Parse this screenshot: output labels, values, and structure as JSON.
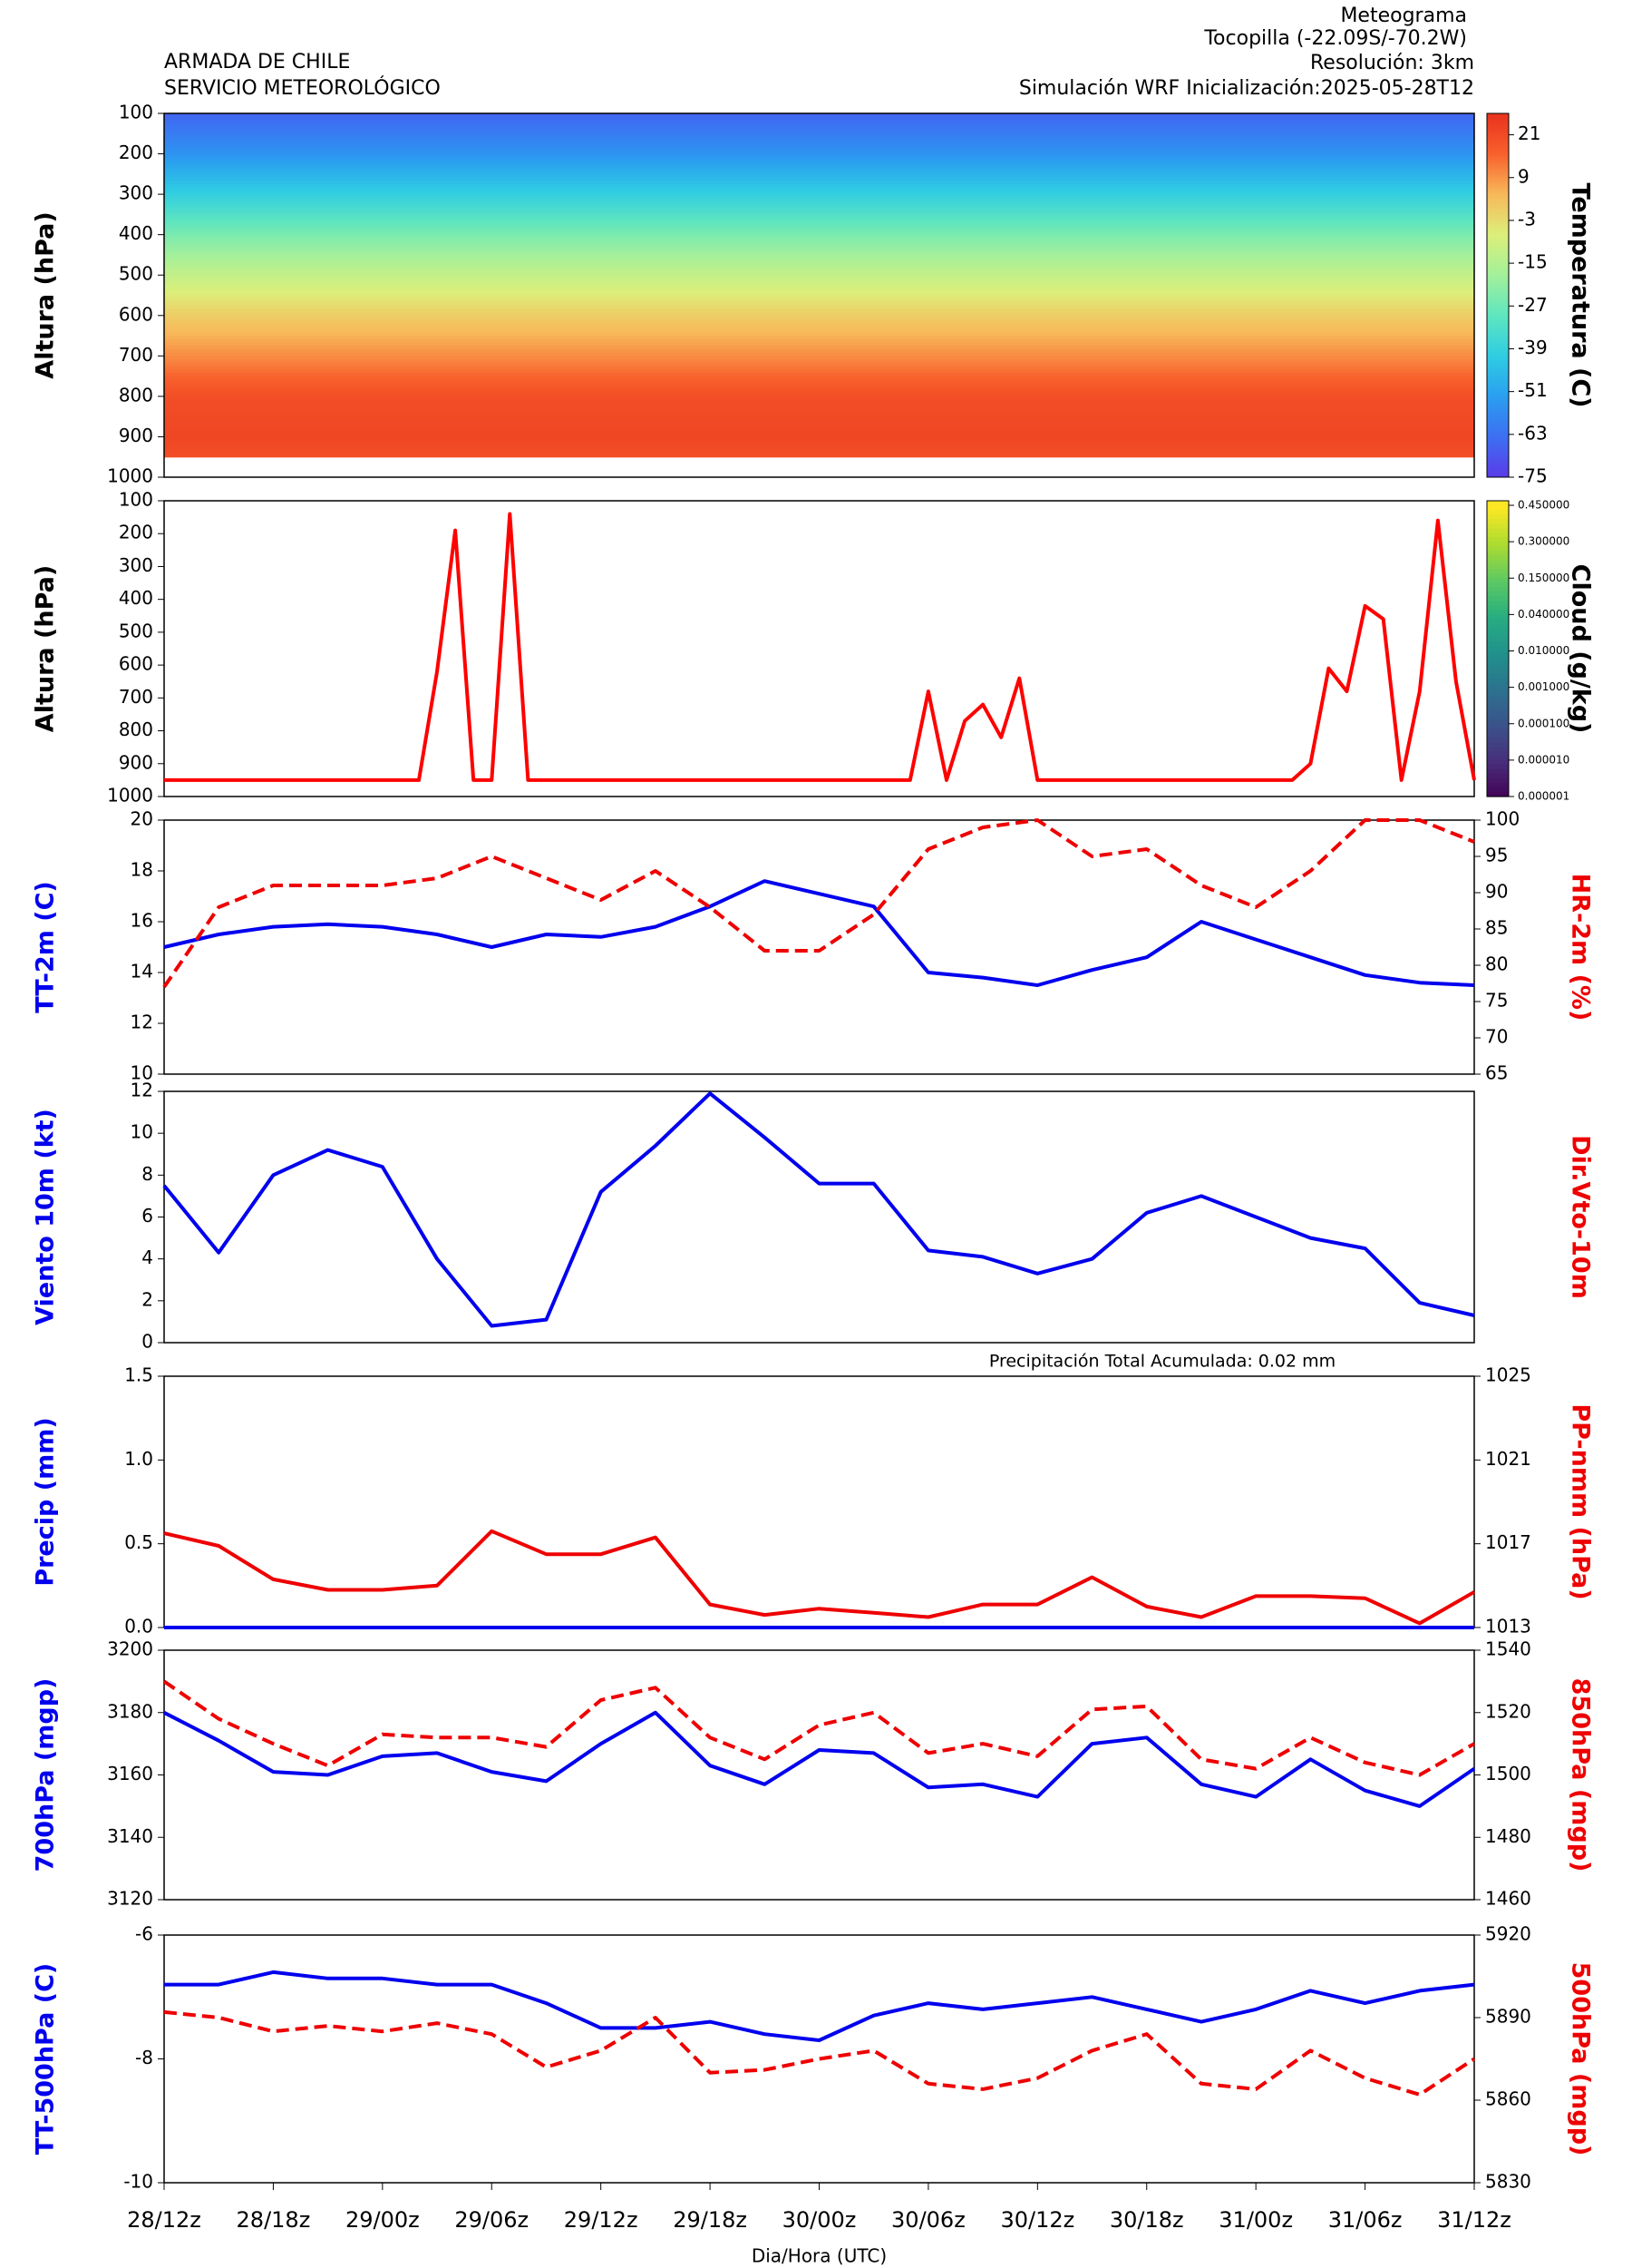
{
  "header": {
    "left": [
      "ARMADA DE CHILE",
      "SERVICIO METEOROLÓGICO"
    ],
    "right": [
      "Meteograma",
      "Tocopilla  (-22.09S/-70.2W)",
      "Resolución: 3km",
      "Simulación WRF   Inicialización:2025-05-28T12"
    ]
  },
  "chart_data": [
    {
      "type": "contour",
      "ylabel": "Altura (hPa)",
      "ylim": [
        1000,
        100
      ],
      "yticks": [
        100,
        200,
        300,
        400,
        500,
        600,
        700,
        800,
        900,
        1000
      ],
      "xlim": [
        0,
        72
      ],
      "levels": [
        100,
        200,
        300,
        400,
        500,
        600,
        700,
        800,
        900,
        950
      ],
      "temperature": [
        -66,
        -55,
        -40,
        -25,
        -12,
        0,
        10,
        20,
        22,
        20
      ],
      "colorbar": {
        "label": "Temperatura (C)",
        "lim": [
          -75,
          27
        ],
        "ticks": [
          21,
          9,
          -3,
          -15,
          -27,
          -39,
          -51,
          -63,
          -75
        ],
        "colors": [
          "#5a3ce8",
          "#3d6ff2",
          "#2a9ff0",
          "#2fcde2",
          "#5fe6bf",
          "#a3f09a",
          "#dcef7a",
          "#f8b85a",
          "#f8602c",
          "#e8321e"
        ]
      }
    },
    {
      "type": "line",
      "ylabel": "Altura (hPa)",
      "ylim": [
        1000,
        100
      ],
      "yticks": [
        100,
        200,
        300,
        400,
        500,
        600,
        700,
        800,
        900,
        1000
      ],
      "xlim": [
        0,
        72
      ],
      "x": [
        0,
        14,
        15,
        16,
        17,
        18,
        19,
        20,
        41,
        42,
        43,
        44,
        45,
        46,
        47,
        48,
        62,
        63,
        64,
        65,
        66,
        67,
        68,
        69,
        70,
        71,
        72
      ],
      "series": [
        {
          "color": "#ff0000",
          "values": [
            950,
            950,
            620,
            190,
            950,
            950,
            140,
            950,
            950,
            680,
            950,
            770,
            720,
            820,
            640,
            950,
            950,
            900,
            610,
            680,
            420,
            460,
            950,
            680,
            160,
            650,
            950
          ]
        }
      ],
      "colorbar": {
        "label": "Cloud (g/kg)",
        "ticks": [
          {
            "value": 0.45,
            "label": "0.450000"
          },
          {
            "value": 0.3,
            "label": "0.300000"
          },
          {
            "value": 0.15,
            "label": "0.150000"
          },
          {
            "value": 0.04,
            "label": "0.040000"
          },
          {
            "value": 0.01,
            "label": "0.010000"
          },
          {
            "value": 0.001,
            "label": "0.001000"
          },
          {
            "value": 0.0001,
            "label": "0.000100"
          },
          {
            "value": 1e-05,
            "label": "0.000010"
          },
          {
            "value": 1e-06,
            "label": "0.000001"
          }
        ],
        "colors": [
          "#fde725",
          "#addc30",
          "#5ec962",
          "#28ae80",
          "#21918c",
          "#2c728e",
          "#3b528b",
          "#472d7b",
          "#440154"
        ]
      }
    },
    {
      "type": "line",
      "ylabel": "TT-2m (C)",
      "y2label": "HR-2m (%)",
      "ylim": [
        10,
        20
      ],
      "yticks": [
        10,
        12,
        14,
        16,
        18,
        20
      ],
      "y2lim": [
        65,
        100
      ],
      "y2ticks": [
        65,
        70,
        75,
        80,
        85,
        90,
        95,
        100
      ],
      "xlim": [
        0,
        72
      ],
      "x": [
        0,
        3,
        6,
        9,
        12,
        15,
        18,
        21,
        24,
        27,
        30,
        33,
        36,
        39,
        42,
        45,
        48,
        51,
        54,
        57,
        60,
        63,
        66,
        69,
        72
      ],
      "series": [
        {
          "color": "#0000ee",
          "values": [
            15.0,
            15.5,
            15.8,
            15.9,
            15.8,
            15.5,
            15.0,
            15.5,
            15.4,
            15.8,
            16.6,
            17.6,
            17.1,
            16.6,
            14.0,
            13.8,
            13.5,
            14.1,
            14.6,
            16.0,
            15.3,
            14.6,
            13.9,
            13.6,
            13.5
          ]
        },
        {
          "color": "#ee0000",
          "dash": true,
          "axis": "y2",
          "values": [
            77,
            88,
            91,
            91,
            91,
            92,
            95,
            92,
            89,
            93,
            88,
            82,
            82,
            87,
            96,
            99,
            100,
            95,
            96,
            91,
            88,
            93,
            100,
            100,
            97
          ]
        }
      ]
    },
    {
      "type": "line",
      "ylabel": "Viento 10m (kt)",
      "y2label": "Dir.Vto-10m",
      "ylim": [
        0,
        12
      ],
      "yticks": [
        0,
        2,
        4,
        6,
        8,
        10,
        12
      ],
      "xlim": [
        0,
        72
      ],
      "x": [
        0,
        3,
        6,
        9,
        12,
        15,
        18,
        21,
        24,
        27,
        30,
        33,
        36,
        39,
        42,
        45,
        48,
        51,
        54,
        57,
        60,
        63,
        66,
        69,
        72
      ],
      "series": [
        {
          "color": "#0000ee",
          "values": [
            7.5,
            4.3,
            8.0,
            9.2,
            8.4,
            4.0,
            0.8,
            1.1,
            7.2,
            9.4,
            11.9,
            9.8,
            7.6,
            7.6,
            4.4,
            4.1,
            3.3,
            4.0,
            6.2,
            7.0,
            6.0,
            5.0,
            4.5,
            1.9,
            1.3
          ]
        }
      ]
    },
    {
      "type": "line",
      "ylabel": "Precip (mm)",
      "y2label": "PP-nmm (hPa)",
      "annotation": "Precipitación Total Acumulada: 0.02 mm",
      "ylim": [
        0,
        1.5
      ],
      "yticks": [
        {
          "value": 0,
          "label": "0.0"
        },
        0.5,
        {
          "value": 1,
          "label": "1.0"
        },
        1.5
      ],
      "y2lim": [
        1013,
        1025
      ],
      "y2ticks": [
        1013,
        1017,
        1021,
        1025
      ],
      "xlim": [
        0,
        72
      ],
      "x": [
        0,
        3,
        6,
        9,
        12,
        15,
        18,
        21,
        24,
        27,
        30,
        33,
        36,
        39,
        42,
        45,
        48,
        51,
        54,
        57,
        60,
        63,
        66,
        69,
        72
      ],
      "series": [
        {
          "color": "#0000ee",
          "values": [
            0,
            0,
            0,
            0,
            0,
            0,
            0,
            0,
            0,
            0,
            0,
            0,
            0,
            0,
            0,
            0,
            0,
            0,
            0,
            0,
            0,
            0,
            0,
            0,
            0
          ]
        },
        {
          "color": "#ee0000",
          "axis": "y2",
          "values": [
            1017.5,
            1016.9,
            1015.3,
            1014.8,
            1014.8,
            1015.0,
            1017.6,
            1016.5,
            1016.5,
            1017.3,
            1014.1,
            1013.6,
            1013.9,
            1013.7,
            1013.5,
            1014.1,
            1014.1,
            1015.4,
            1014.0,
            1013.5,
            1014.5,
            1014.5,
            1014.4,
            1013.2,
            1014.7
          ]
        }
      ]
    },
    {
      "type": "line",
      "ylabel": "700hPa (mgp)",
      "y2label": "850hPa (mgp)",
      "ylim": [
        3120,
        3200
      ],
      "yticks": [
        3120,
        3140,
        3160,
        3180,
        3200
      ],
      "y2lim": [
        1460,
        1540
      ],
      "y2ticks": [
        1460,
        1480,
        1500,
        1520,
        1540
      ],
      "xlim": [
        0,
        72
      ],
      "x": [
        0,
        3,
        6,
        9,
        12,
        15,
        18,
        21,
        24,
        27,
        30,
        33,
        36,
        39,
        42,
        45,
        48,
        51,
        54,
        57,
        60,
        63,
        66,
        69,
        72
      ],
      "series": [
        {
          "color": "#0000ee",
          "values": [
            3180,
            3171,
            3161,
            3160,
            3166,
            3167,
            3161,
            3158,
            3170,
            3180,
            3163,
            3157,
            3168,
            3167,
            3156,
            3157,
            3153,
            3170,
            3172,
            3157,
            3153,
            3165,
            3155,
            3150,
            3162
          ]
        },
        {
          "color": "#ee0000",
          "dash": true,
          "axis": "y2",
          "values": [
            1530,
            1518,
            1510,
            1503,
            1513,
            1512,
            1512,
            1509,
            1524,
            1528,
            1512,
            1505,
            1516,
            1520,
            1507,
            1510,
            1506,
            1521,
            1522,
            1505,
            1502,
            1512,
            1504,
            1500,
            1510
          ]
        }
      ]
    },
    {
      "type": "line",
      "ylabel": "TT-500hPa (C)",
      "y2label": "500hPa (mgp)",
      "ylim": [
        -10,
        -6
      ],
      "yticks": [
        -10,
        -8,
        -6
      ],
      "y2lim": [
        5830,
        5920
      ],
      "y2ticks": [
        5830,
        5860,
        5890,
        5920
      ],
      "xlim": [
        0,
        72
      ],
      "x": [
        0,
        3,
        6,
        9,
        12,
        15,
        18,
        21,
        24,
        27,
        30,
        33,
        36,
        39,
        42,
        45,
        48,
        51,
        54,
        57,
        60,
        63,
        66,
        69,
        72
      ],
      "xlabel": "Dia/Hora (UTC)",
      "xticks": [
        {
          "value": 0,
          "label": "28/12z"
        },
        {
          "value": 6,
          "label": "28/18z"
        },
        {
          "value": 12,
          "label": "29/00z"
        },
        {
          "value": 18,
          "label": "29/06z"
        },
        {
          "value": 24,
          "label": "29/12z"
        },
        {
          "value": 30,
          "label": "29/18z"
        },
        {
          "value": 36,
          "label": "30/00z"
        },
        {
          "value": 42,
          "label": "30/06z"
        },
        {
          "value": 48,
          "label": "30/12z"
        },
        {
          "value": 54,
          "label": "30/18z"
        },
        {
          "value": 60,
          "label": "31/00z"
        },
        {
          "value": 66,
          "label": "31/06z"
        },
        {
          "value": 72,
          "label": "31/12z"
        }
      ],
      "series": [
        {
          "color": "#0000ee",
          "values": [
            -6.8,
            -6.8,
            -6.6,
            -6.7,
            -6.7,
            -6.8,
            -6.8,
            -7.1,
            -7.5,
            -7.5,
            -7.4,
            -7.6,
            -7.7,
            -7.3,
            -7.1,
            -7.2,
            -7.1,
            -7.0,
            -7.2,
            -7.4,
            -7.2,
            -6.9,
            -7.1,
            -6.9,
            -6.8
          ]
        },
        {
          "color": "#ee0000",
          "dash": true,
          "axis": "y2",
          "values": [
            5892,
            5890,
            5885,
            5887,
            5885,
            5888,
            5884,
            5872,
            5878,
            5890,
            5870,
            5871,
            5875,
            5878,
            5866,
            5864,
            5868,
            5878,
            5884,
            5866,
            5864,
            5878,
            5868,
            5862,
            5875
          ]
        }
      ]
    }
  ]
}
